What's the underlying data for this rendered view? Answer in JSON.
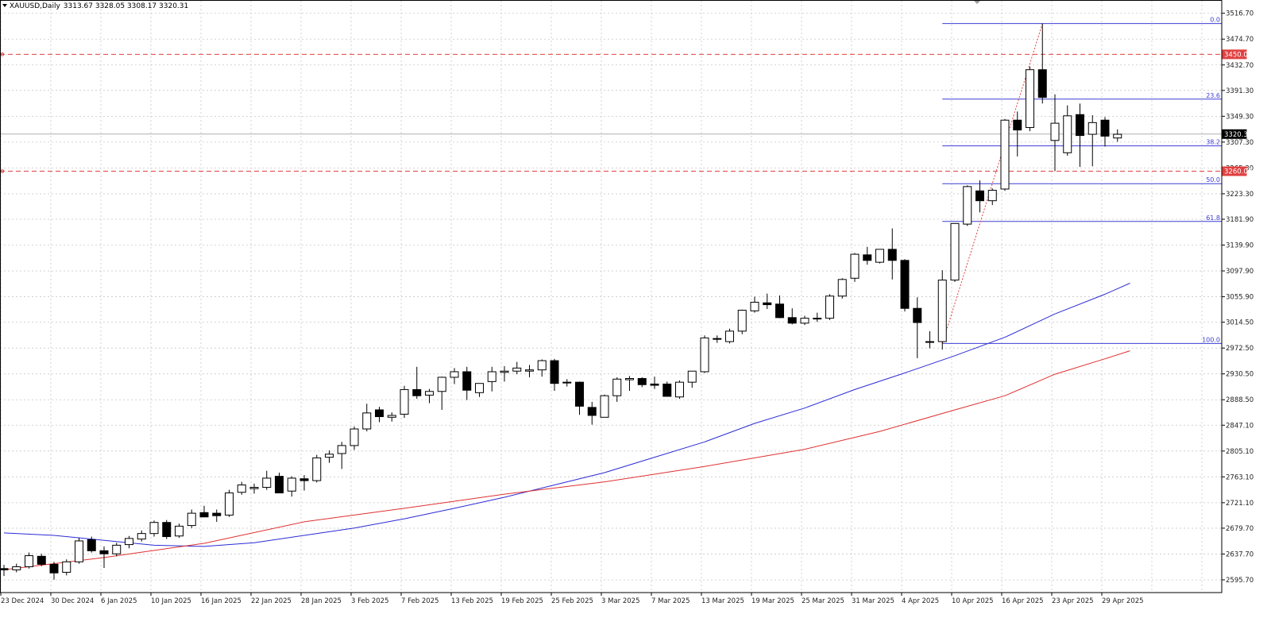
{
  "header": {
    "symbol": "XAUUSD,Daily",
    "ohlc": "3313.67 3328.05 3308.17 3320.31"
  },
  "colors": {
    "background": "#ffffff",
    "grid": "#c8c8c8",
    "bull_body": "#ffffff",
    "bear_body": "#000000",
    "candle_outline": "#000000",
    "ma_fast": "#2b2bd6",
    "ma_slow": "#e03030",
    "fib": "#3d3dd6",
    "horizontal_level": "#e04040",
    "current_price_line": "#b0b0b0"
  },
  "chart_data": {
    "type": "candlestick",
    "title": "XAUUSD,Daily",
    "ylim": [
      2575,
      3537
    ],
    "grid": true,
    "y_ticks": [
      "3516.70",
      "3474.70",
      "3432.70",
      "3391.30",
      "3349.30",
      "3307.30",
      "3265.30",
      "3223.30",
      "3181.90",
      "3139.90",
      "3097.90",
      "3055.90",
      "3014.50",
      "2972.50",
      "2930.50",
      "2888.50",
      "2847.10",
      "2805.10",
      "2763.10",
      "2721.10",
      "2679.70",
      "2637.70",
      "2595.70"
    ],
    "x_ticks": [
      "23 Dec 2024",
      "30 Dec 2024",
      "6 Jan 2025",
      "10 Jan 2025",
      "16 Jan 2025",
      "22 Jan 2025",
      "28 Jan 2025",
      "3 Feb 2025",
      "7 Feb 2025",
      "13 Feb 2025",
      "19 Feb 2025",
      "25 Feb 2025",
      "3 Mar 2025",
      "7 Mar 2025",
      "13 Mar 2025",
      "19 Mar 2025",
      "25 Mar 2025",
      "31 Mar 2025",
      "4 Apr 2025",
      "10 Apr 2025",
      "16 Apr 2025",
      "23 Apr 2025",
      "29 Apr 2025"
    ],
    "candles": [
      {
        "o": 2614,
        "h": 2620,
        "l": 2602,
        "c": 2612
      },
      {
        "o": 2612,
        "h": 2622,
        "l": 2608,
        "c": 2617
      },
      {
        "o": 2617,
        "h": 2640,
        "l": 2614,
        "c": 2635
      },
      {
        "o": 2634,
        "h": 2638,
        "l": 2618,
        "c": 2621
      },
      {
        "o": 2621,
        "h": 2625,
        "l": 2596,
        "c": 2607
      },
      {
        "o": 2608,
        "h": 2629,
        "l": 2603,
        "c": 2625
      },
      {
        "o": 2625,
        "h": 2664,
        "l": 2622,
        "c": 2659
      },
      {
        "o": 2661,
        "h": 2666,
        "l": 2640,
        "c": 2643
      },
      {
        "o": 2643,
        "h": 2650,
        "l": 2615,
        "c": 2638
      },
      {
        "o": 2638,
        "h": 2656,
        "l": 2634,
        "c": 2652
      },
      {
        "o": 2653,
        "h": 2667,
        "l": 2647,
        "c": 2663
      },
      {
        "o": 2662,
        "h": 2676,
        "l": 2658,
        "c": 2671
      },
      {
        "o": 2671,
        "h": 2692,
        "l": 2666,
        "c": 2689
      },
      {
        "o": 2689,
        "h": 2693,
        "l": 2662,
        "c": 2666
      },
      {
        "o": 2667,
        "h": 2687,
        "l": 2664,
        "c": 2683
      },
      {
        "o": 2684,
        "h": 2710,
        "l": 2680,
        "c": 2704
      },
      {
        "o": 2705,
        "h": 2716,
        "l": 2701,
        "c": 2698
      },
      {
        "o": 2704,
        "h": 2710,
        "l": 2690,
        "c": 2700
      },
      {
        "o": 2701,
        "h": 2742,
        "l": 2698,
        "c": 2737
      },
      {
        "o": 2738,
        "h": 2755,
        "l": 2734,
        "c": 2750
      },
      {
        "o": 2744,
        "h": 2752,
        "l": 2736,
        "c": 2746
      },
      {
        "o": 2746,
        "h": 2773,
        "l": 2742,
        "c": 2761
      },
      {
        "o": 2764,
        "h": 2770,
        "l": 2738,
        "c": 2737
      },
      {
        "o": 2740,
        "h": 2764,
        "l": 2731,
        "c": 2761
      },
      {
        "o": 2760,
        "h": 2766,
        "l": 2741,
        "c": 2757
      },
      {
        "o": 2757,
        "h": 2799,
        "l": 2754,
        "c": 2794
      },
      {
        "o": 2795,
        "h": 2806,
        "l": 2786,
        "c": 2800
      },
      {
        "o": 2801,
        "h": 2820,
        "l": 2776,
        "c": 2814
      },
      {
        "o": 2814,
        "h": 2845,
        "l": 2807,
        "c": 2841
      },
      {
        "o": 2841,
        "h": 2882,
        "l": 2837,
        "c": 2867
      },
      {
        "o": 2872,
        "h": 2877,
        "l": 2852,
        "c": 2861
      },
      {
        "o": 2860,
        "h": 2868,
        "l": 2853,
        "c": 2863
      },
      {
        "o": 2865,
        "h": 2911,
        "l": 2859,
        "c": 2905
      },
      {
        "o": 2905,
        "h": 2942,
        "l": 2890,
        "c": 2895
      },
      {
        "o": 2896,
        "h": 2906,
        "l": 2883,
        "c": 2902
      },
      {
        "o": 2902,
        "h": 2926,
        "l": 2872,
        "c": 2925
      },
      {
        "o": 2925,
        "h": 2940,
        "l": 2914,
        "c": 2934
      },
      {
        "o": 2934,
        "h": 2942,
        "l": 2888,
        "c": 2904
      },
      {
        "o": 2900,
        "h": 2913,
        "l": 2893,
        "c": 2915
      },
      {
        "o": 2918,
        "h": 2942,
        "l": 2902,
        "c": 2934
      },
      {
        "o": 2933,
        "h": 2943,
        "l": 2918,
        "c": 2935
      },
      {
        "o": 2935,
        "h": 2950,
        "l": 2930,
        "c": 2940
      },
      {
        "o": 2935,
        "h": 2945,
        "l": 2925,
        "c": 2937
      },
      {
        "o": 2937,
        "h": 2954,
        "l": 2926,
        "c": 2952
      },
      {
        "o": 2952,
        "h": 2955,
        "l": 2903,
        "c": 2915
      },
      {
        "o": 2916,
        "h": 2922,
        "l": 2910,
        "c": 2917
      },
      {
        "o": 2917,
        "h": 2918,
        "l": 2864,
        "c": 2878
      },
      {
        "o": 2876,
        "h": 2885,
        "l": 2848,
        "c": 2863
      },
      {
        "o": 2860,
        "h": 2897,
        "l": 2860,
        "c": 2895
      },
      {
        "o": 2895,
        "h": 2925,
        "l": 2885,
        "c": 2922
      },
      {
        "o": 2921,
        "h": 2927,
        "l": 2903,
        "c": 2923
      },
      {
        "o": 2923,
        "h": 2925,
        "l": 2909,
        "c": 2913
      },
      {
        "o": 2914,
        "h": 2926,
        "l": 2906,
        "c": 2912
      },
      {
        "o": 2914,
        "h": 2918,
        "l": 2894,
        "c": 2894
      },
      {
        "o": 2893,
        "h": 2920,
        "l": 2890,
        "c": 2917
      },
      {
        "o": 2917,
        "h": 2932,
        "l": 2908,
        "c": 2935
      },
      {
        "o": 2934,
        "h": 2993,
        "l": 2932,
        "c": 2989
      },
      {
        "o": 2988,
        "h": 2993,
        "l": 2981,
        "c": 2987
      },
      {
        "o": 2983,
        "h": 3004,
        "l": 2980,
        "c": 3000
      },
      {
        "o": 3000,
        "h": 3035,
        "l": 2995,
        "c": 3034
      },
      {
        "o": 3033,
        "h": 3056,
        "l": 3030,
        "c": 3047
      },
      {
        "o": 3046,
        "h": 3061,
        "l": 3036,
        "c": 3043
      },
      {
        "o": 3044,
        "h": 3058,
        "l": 3021,
        "c": 3022
      },
      {
        "o": 3022,
        "h": 3037,
        "l": 3011,
        "c": 3013
      },
      {
        "o": 3013,
        "h": 3025,
        "l": 3010,
        "c": 3021
      },
      {
        "o": 3020,
        "h": 3030,
        "l": 3015,
        "c": 3021
      },
      {
        "o": 3021,
        "h": 3060,
        "l": 3018,
        "c": 3057
      },
      {
        "o": 3057,
        "h": 3086,
        "l": 3053,
        "c": 3084
      },
      {
        "o": 3086,
        "h": 3127,
        "l": 3080,
        "c": 3125
      },
      {
        "o": 3124,
        "h": 3137,
        "l": 3108,
        "c": 3115
      },
      {
        "o": 3112,
        "h": 3133,
        "l": 3110,
        "c": 3133
      },
      {
        "o": 3133,
        "h": 3167,
        "l": 3084,
        "c": 3115
      },
      {
        "o": 3115,
        "h": 3117,
        "l": 3032,
        "c": 3037
      },
      {
        "o": 3037,
        "h": 3055,
        "l": 2956,
        "c": 3014
      },
      {
        "o": 2982,
        "h": 3000,
        "l": 2972,
        "c": 2983
      },
      {
        "o": 2983,
        "h": 3099,
        "l": 2970,
        "c": 3083
      },
      {
        "o": 3083,
        "h": 3175,
        "l": 3080,
        "c": 3175
      },
      {
        "o": 3174,
        "h": 3237,
        "l": 3171,
        "c": 3235
      },
      {
        "o": 3228,
        "h": 3245,
        "l": 3193,
        "c": 3212
      },
      {
        "o": 3212,
        "h": 3232,
        "l": 3205,
        "c": 3229
      },
      {
        "o": 3231,
        "h": 3345,
        "l": 3228,
        "c": 3343
      },
      {
        "o": 3343,
        "h": 3357,
        "l": 3284,
        "c": 3327
      },
      {
        "o": 3331,
        "h": 3430,
        "l": 3325,
        "c": 3425
      },
      {
        "o": 3425,
        "h": 3500,
        "l": 3370,
        "c": 3380
      },
      {
        "o": 3310,
        "h": 3385,
        "l": 3260,
        "c": 3338
      },
      {
        "o": 3290,
        "h": 3367,
        "l": 3285,
        "c": 3350
      },
      {
        "o": 3352,
        "h": 3370,
        "l": 3267,
        "c": 3318
      },
      {
        "o": 3320,
        "h": 3351,
        "l": 3268,
        "c": 3339
      },
      {
        "o": 3343,
        "h": 3348,
        "l": 3300,
        "c": 3317
      },
      {
        "o": 3314,
        "h": 3328,
        "l": 3308,
        "c": 3320
      }
    ],
    "series": [
      {
        "name": "",
        "type": "line",
        "color": "#2b2bd6",
        "values_by_candle": [
          [
            0,
            2672
          ],
          [
            4,
            2668
          ],
          [
            8,
            2660
          ],
          [
            12,
            2652
          ],
          [
            16,
            2650
          ],
          [
            20,
            2656
          ],
          [
            24,
            2668
          ],
          [
            28,
            2680
          ],
          [
            32,
            2695
          ],
          [
            36,
            2712
          ],
          [
            40,
            2730
          ],
          [
            44,
            2750
          ],
          [
            48,
            2770
          ],
          [
            52,
            2795
          ],
          [
            56,
            2820
          ],
          [
            60,
            2850
          ],
          [
            64,
            2875
          ],
          [
            68,
            2905
          ],
          [
            72,
            2932
          ],
          [
            76,
            2960
          ],
          [
            80,
            2990
          ],
          [
            84,
            3028
          ],
          [
            88,
            3060
          ],
          [
            90,
            3078
          ]
        ]
      },
      {
        "name": "",
        "type": "line",
        "color": "#e03030",
        "values_by_candle": [
          [
            0,
            2612
          ],
          [
            8,
            2632
          ],
          [
            16,
            2655
          ],
          [
            24,
            2690
          ],
          [
            32,
            2712
          ],
          [
            40,
            2735
          ],
          [
            48,
            2755
          ],
          [
            56,
            2780
          ],
          [
            64,
            2808
          ],
          [
            70,
            2837
          ],
          [
            76,
            2872
          ],
          [
            80,
            2895
          ],
          [
            84,
            2930
          ],
          [
            88,
            2955
          ],
          [
            90,
            2968
          ]
        ]
      }
    ],
    "fibonacci": {
      "levels": [
        {
          "label": "0.0",
          "value": 3500.0
        },
        {
          "label": "23.6",
          "value": 3377.2
        },
        {
          "label": "38.2",
          "value": 3301.2
        },
        {
          "label": "50.0",
          "value": 3239.7
        },
        {
          "label": "61.8",
          "value": 3178.3
        },
        {
          "label": "100.0",
          "value": 2980.0
        }
      ],
      "start_candle": 75,
      "anchor_low": {
        "candle": 75,
        "value": 2980.0
      },
      "anchor_high": {
        "candle": 83,
        "value": 3500.0
      }
    },
    "horizontal_lines": [
      {
        "label": "3450.00",
        "value": 3450.0
      },
      {
        "label": "3260.00",
        "value": 3260.0
      }
    ],
    "current_price": {
      "label": "3320.31",
      "value": 3320.31
    }
  }
}
